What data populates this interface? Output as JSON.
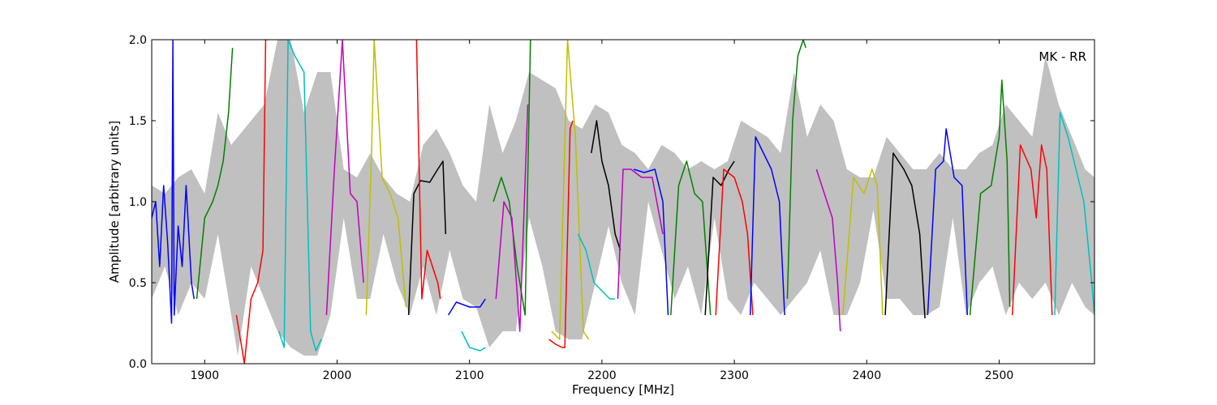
{
  "chart_data": {
    "type": "line",
    "title": "",
    "annotation": "MK - RR",
    "xlabel": "Frequency [MHz]",
    "ylabel": "Amplitude [arbitrary units]",
    "xlim": [
      1860,
      2572
    ],
    "ylim": [
      0.0,
      2.0
    ],
    "x_ticks": [
      1900,
      2000,
      2100,
      2200,
      2300,
      2400,
      2500
    ],
    "y_ticks": [
      0.0,
      0.5,
      1.0,
      1.5,
      2.0
    ],
    "y_tick_labels": [
      "0.0",
      "0.5",
      "1.0",
      "1.5",
      "2.0"
    ],
    "grid": false,
    "legend": "none",
    "background": {
      "color": "#c0c0c0",
      "x": [
        1860,
        1870,
        1880,
        1890,
        1900,
        1910,
        1920,
        1925,
        1935,
        1945,
        1955,
        1965,
        1975,
        1985,
        1995,
        2005,
        2015,
        2025,
        2035,
        2045,
        2055,
        2065,
        2075,
        2085,
        2095,
        2105,
        2115,
        2125,
        2135,
        2145,
        2155,
        2165,
        2175,
        2185,
        2195,
        2205,
        2215,
        2225,
        2235,
        2245,
        2255,
        2265,
        2275,
        2285,
        2295,
        2305,
        2315,
        2325,
        2335,
        2345,
        2355,
        2365,
        2375,
        2385,
        2395,
        2405,
        2415,
        2425,
        2435,
        2445,
        2455,
        2465,
        2475,
        2485,
        2495,
        2505,
        2515,
        2525,
        2535,
        2545,
        2555,
        2565,
        2572
      ],
      "upper": [
        1.1,
        1.05,
        1.15,
        1.2,
        1.05,
        1.55,
        1.35,
        1.4,
        1.5,
        1.6,
        2.0,
        2.0,
        1.55,
        1.8,
        1.8,
        1.2,
        1.15,
        1.3,
        1.15,
        1.05,
        1.0,
        1.35,
        1.45,
        1.3,
        1.1,
        1.0,
        1.6,
        1.3,
        1.5,
        1.8,
        1.75,
        1.7,
        1.5,
        1.45,
        1.6,
        1.55,
        1.35,
        1.3,
        1.2,
        1.35,
        1.3,
        1.2,
        1.25,
        1.2,
        1.25,
        1.5,
        1.45,
        1.4,
        1.3,
        1.8,
        1.4,
        1.6,
        1.5,
        1.2,
        1.15,
        1.15,
        1.4,
        1.3,
        1.2,
        1.2,
        1.3,
        1.2,
        1.2,
        1.3,
        1.35,
        1.6,
        1.5,
        1.4,
        1.9,
        1.6,
        1.4,
        1.2,
        1.15
      ],
      "lower": [
        0.4,
        0.6,
        0.3,
        0.5,
        0.4,
        0.8,
        0.3,
        0.05,
        0.6,
        0.4,
        0.2,
        0.1,
        0.05,
        0.05,
        0.3,
        0.9,
        0.4,
        0.4,
        0.8,
        0.5,
        0.3,
        0.6,
        0.3,
        0.7,
        0.4,
        0.35,
        0.1,
        0.2,
        0.2,
        0.9,
        0.6,
        0.2,
        0.15,
        0.15,
        0.5,
        0.85,
        0.5,
        0.3,
        1.0,
        0.7,
        0.4,
        0.6,
        0.3,
        0.9,
        0.4,
        0.3,
        0.5,
        0.4,
        0.3,
        0.4,
        0.5,
        0.7,
        0.3,
        0.3,
        0.5,
        0.95,
        0.4,
        0.4,
        0.3,
        0.3,
        0.35,
        0.9,
        0.3,
        0.5,
        0.6,
        0.3,
        0.5,
        0.4,
        0.5,
        0.3,
        0.5,
        0.35,
        0.3
      ]
    },
    "series": [
      {
        "color": "#0000ff",
        "x": [
          1860,
          1863,
          1866,
          1869,
          1872,
          1875,
          1876,
          1877,
          1880,
          1883,
          1886,
          1888,
          1890,
          1892
        ],
        "y": [
          0.9,
          1.0,
          0.6,
          1.1,
          0.75,
          0.25,
          2.0,
          0.3,
          0.85,
          0.6,
          1.1,
          0.8,
          0.5,
          0.4
        ]
      },
      {
        "color": "#008000",
        "x": [
          1894,
          1900,
          1906,
          1910,
          1914,
          1918,
          1921
        ],
        "y": [
          0.4,
          0.9,
          1.0,
          1.1,
          1.25,
          1.55,
          1.95
        ]
      },
      {
        "color": "#ff0000",
        "x": [
          1924,
          1928,
          1930,
          1935,
          1940,
          1944,
          1946,
          1948
        ],
        "y": [
          0.3,
          0.1,
          0.0,
          0.4,
          0.5,
          0.7,
          2.0,
          2.0
        ]
      },
      {
        "color": "#00bfbf",
        "x": [
          1956,
          1960,
          1963,
          1968,
          1975,
          1980,
          1984,
          1988
        ],
        "y": [
          0.2,
          0.1,
          2.0,
          1.9,
          1.8,
          0.2,
          0.08,
          0.15
        ]
      },
      {
        "color": "#bf00bf",
        "x": [
          1992,
          1998,
          2004,
          2010,
          2015,
          2018,
          2020
        ],
        "y": [
          0.3,
          1.2,
          2.0,
          1.05,
          1.0,
          0.7,
          0.5
        ]
      },
      {
        "color": "#bfbf00",
        "x": [
          2022,
          2026,
          2028,
          2034,
          2040,
          2046,
          2052
        ],
        "y": [
          0.3,
          1.3,
          2.0,
          1.15,
          1.05,
          0.9,
          0.35
        ]
      },
      {
        "color": "#000000",
        "x": [
          2054,
          2058,
          2063,
          2070,
          2076,
          2080,
          2082
        ],
        "y": [
          0.3,
          1.05,
          1.13,
          1.12,
          1.2,
          1.25,
          0.8
        ]
      },
      {
        "color": "#ff0000",
        "x": [
          2060,
          2064,
          2068,
          2072,
          2076,
          2078
        ],
        "y": [
          2.0,
          0.4,
          0.7,
          0.6,
          0.5,
          0.4
        ]
      },
      {
        "color": "#0000ff",
        "x": [
          2084,
          2090,
          2100,
          2108,
          2112
        ],
        "y": [
          0.3,
          0.38,
          0.35,
          0.35,
          0.4
        ]
      },
      {
        "color": "#00bfbf",
        "x": [
          2094,
          2100,
          2108,
          2112
        ],
        "y": [
          0.2,
          0.1,
          0.08,
          0.1
        ]
      },
      {
        "color": "#008000",
        "x": [
          2118,
          2124,
          2130,
          2136,
          2142,
          2146
        ],
        "y": [
          1.0,
          1.15,
          1.0,
          0.6,
          0.3,
          2.0
        ]
      },
      {
        "color": "#bf00bf",
        "x": [
          2120,
          2126,
          2132,
          2138,
          2144
        ],
        "y": [
          0.4,
          1.0,
          0.9,
          0.2,
          1.6
        ]
      },
      {
        "color": "#ff0000",
        "x": [
          2160,
          2165,
          2170,
          2172,
          2176,
          2178
        ],
        "y": [
          0.15,
          0.12,
          0.1,
          0.1,
          1.45,
          1.5
        ]
      },
      {
        "color": "#bfbf00",
        "x": [
          2162,
          2168,
          2174,
          2180,
          2186,
          2190
        ],
        "y": [
          0.2,
          0.15,
          2.0,
          1.4,
          0.2,
          0.15
        ]
      },
      {
        "color": "#00bfbf",
        "x": [
          2182,
          2188,
          2194,
          2200,
          2206,
          2210
        ],
        "y": [
          0.8,
          0.7,
          0.5,
          0.45,
          0.4,
          0.4
        ]
      },
      {
        "color": "#000000",
        "x": [
          2192,
          2196,
          2200,
          2205,
          2210,
          2214
        ],
        "y": [
          1.3,
          1.5,
          1.25,
          1.1,
          0.8,
          0.7
        ]
      },
      {
        "color": "#bf00bf",
        "x": [
          2212,
          2216,
          2222,
          2230,
          2238,
          2246
        ],
        "y": [
          0.4,
          1.2,
          1.2,
          1.15,
          1.15,
          0.8
        ]
      },
      {
        "color": "#0000ff",
        "x": [
          2224,
          2232,
          2240,
          2246,
          2250
        ],
        "y": [
          1.2,
          1.18,
          1.2,
          1.0,
          0.3
        ]
      },
      {
        "color": "#008000",
        "x": [
          2252,
          2258,
          2264,
          2270,
          2276,
          2282
        ],
        "y": [
          0.3,
          1.1,
          1.25,
          1.05,
          1.0,
          0.3
        ]
      },
      {
        "color": "#000000",
        "x": [
          2278,
          2284,
          2290,
          2296,
          2300
        ],
        "y": [
          0.3,
          1.15,
          1.1,
          1.2,
          1.25
        ]
      },
      {
        "color": "#ff0000",
        "x": [
          2286,
          2292,
          2300,
          2306,
          2310,
          2314
        ],
        "y": [
          0.3,
          1.2,
          1.15,
          1.0,
          0.8,
          0.3
        ]
      },
      {
        "color": "#0000ff",
        "x": [
          2312,
          2316,
          2322,
          2328,
          2334,
          2338
        ],
        "y": [
          0.3,
          1.4,
          1.3,
          1.2,
          1.0,
          0.3
        ]
      },
      {
        "color": "#008000",
        "x": [
          2340,
          2344,
          2348,
          2352,
          2354
        ],
        "y": [
          0.4,
          1.5,
          1.9,
          2.0,
          1.95
        ]
      },
      {
        "color": "#bf00bf",
        "x": [
          2362,
          2366,
          2370,
          2374,
          2378,
          2380
        ],
        "y": [
          1.2,
          1.1,
          1.0,
          0.9,
          0.5,
          0.2
        ]
      },
      {
        "color": "#bfbf00",
        "x": [
          2382,
          2390,
          2398,
          2404,
          2408,
          2412
        ],
        "y": [
          0.3,
          1.15,
          1.05,
          1.2,
          1.1,
          0.3
        ]
      },
      {
        "color": "#000000",
        "x": [
          2414,
          2420,
          2428,
          2434,
          2440,
          2444
        ],
        "y": [
          0.3,
          1.3,
          1.2,
          1.1,
          0.8,
          0.28
        ]
      },
      {
        "color": "#0000ff",
        "x": [
          2446,
          2452,
          2458,
          2460,
          2466,
          2472,
          2476
        ],
        "y": [
          0.3,
          1.2,
          1.25,
          1.45,
          1.15,
          1.1,
          0.3
        ]
      },
      {
        "color": "#008000",
        "x": [
          2478,
          2486,
          2494,
          2500,
          2502,
          2506,
          2508
        ],
        "y": [
          0.3,
          1.05,
          1.1,
          1.4,
          1.75,
          1.25,
          0.35
        ]
      },
      {
        "color": "#ff0000",
        "x": [
          2510,
          2516,
          2524,
          2528,
          2532,
          2536,
          2540
        ],
        "y": [
          0.3,
          1.35,
          1.2,
          0.9,
          1.35,
          1.2,
          0.3
        ]
      },
      {
        "color": "#00bfbf",
        "x": [
          2542,
          2546,
          2552,
          2558,
          2564,
          2570,
          2572
        ],
        "y": [
          0.3,
          1.55,
          1.4,
          1.2,
          1.0,
          0.5,
          0.3
        ]
      }
    ]
  }
}
